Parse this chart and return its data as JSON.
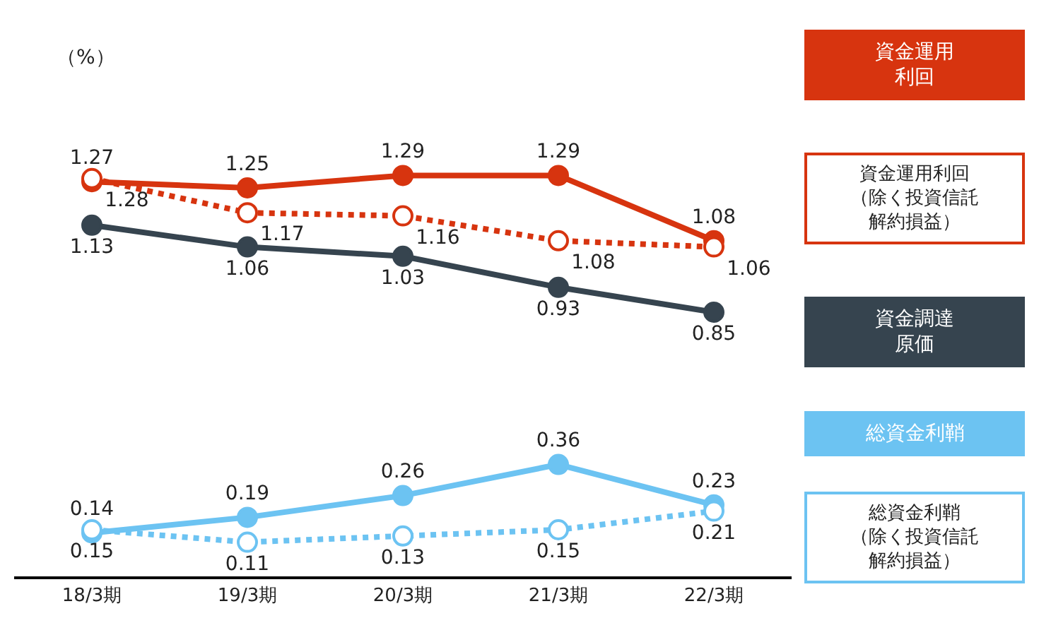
{
  "chart_data": {
    "type": "line",
    "ylabel": "（%）",
    "categories": [
      "18/3期",
      "19/3期",
      "20/3期",
      "21/3期",
      "22/3期"
    ],
    "ylim": [
      0,
      1.85
    ],
    "tick_labels": "x",
    "data_labels": true,
    "marker": "circle",
    "series": [
      {
        "name": "資金運用利回",
        "color": "#d7340f",
        "line_style": "solid",
        "values": [
          1.27,
          1.25,
          1.29,
          1.29,
          1.08
        ]
      },
      {
        "name": "資金運用利回（除く投資信託解約損益）",
        "color": "#d7340f",
        "line_style": "dotted",
        "values": [
          1.28,
          1.17,
          1.16,
          1.08,
          1.06
        ]
      },
      {
        "name": "資金調達原価",
        "color": "#36444f",
        "line_style": "solid",
        "values": [
          1.13,
          1.06,
          1.03,
          0.93,
          0.85
        ]
      },
      {
        "name": "総資金利鞘",
        "color": "#6cc3f2",
        "line_style": "solid",
        "values": [
          0.14,
          0.19,
          0.26,
          0.36,
          0.23
        ]
      },
      {
        "name": "総資金利鞘（除く投資信託解約損益）",
        "color": "#6cc3f2",
        "line_style": "dotted",
        "values": [
          0.15,
          0.11,
          0.13,
          0.15,
          0.21
        ]
      }
    ]
  }
}
